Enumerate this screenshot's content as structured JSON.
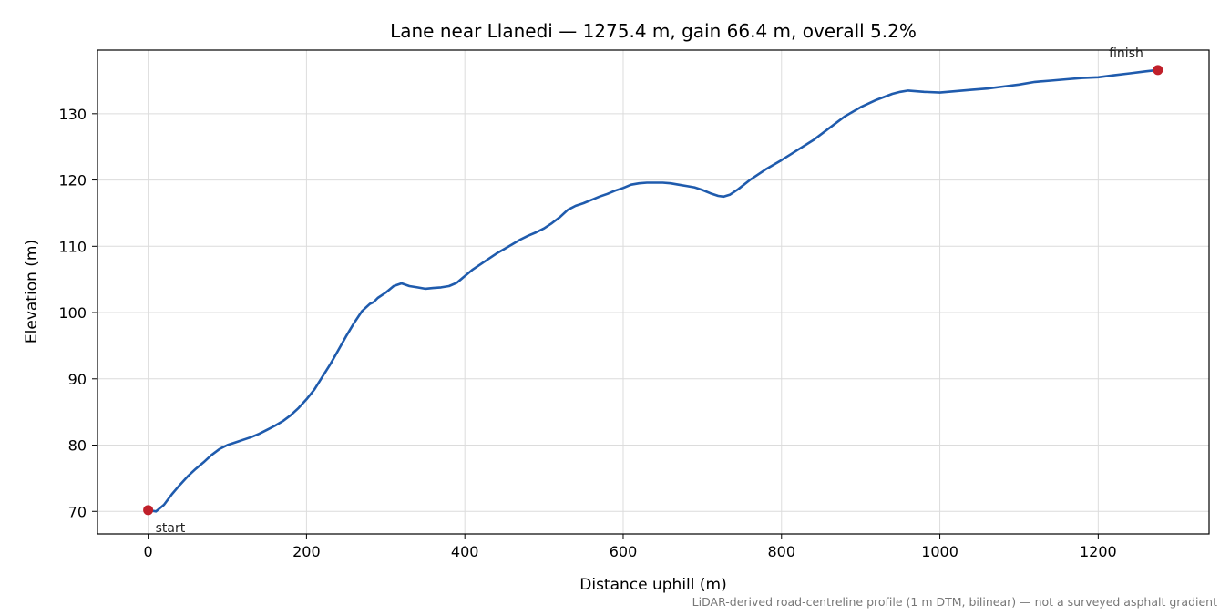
{
  "chart_data": {
    "type": "line",
    "title": "Lane near Llanedi — 1275.4 m, gain 66.4 m, overall 5.2%",
    "xlabel": "Distance uphill (m)",
    "ylabel": "Elevation (m)",
    "xlim": [
      -64,
      1340
    ],
    "ylim": [
      66.6,
      139.6
    ],
    "xticks": [
      0,
      200,
      400,
      600,
      800,
      1000,
      1200
    ],
    "yticks": [
      70,
      80,
      90,
      100,
      110,
      120,
      130
    ],
    "grid": true,
    "line_color": "#1f5bad",
    "marker_color": "#c0202a",
    "series": [
      {
        "x": [
          0,
          10,
          20,
          30,
          40,
          50,
          60,
          70,
          80,
          90,
          100,
          110,
          120,
          130,
          140,
          150,
          160,
          170,
          180,
          190,
          200,
          210,
          220,
          230,
          240,
          250,
          260,
          270,
          280,
          285,
          290,
          300,
          310,
          320,
          330,
          340,
          350,
          360,
          370,
          380,
          390,
          400,
          410,
          420,
          430,
          440,
          450,
          460,
          470,
          480,
          490,
          500,
          510,
          520,
          530,
          540,
          550,
          560,
          570,
          580,
          590,
          600,
          610,
          620,
          630,
          640,
          650,
          660,
          670,
          680,
          690,
          700,
          710,
          720,
          727,
          735,
          745,
          760,
          780,
          800,
          820,
          840,
          860,
          880,
          900,
          920,
          940,
          950,
          960,
          980,
          1000,
          1020,
          1040,
          1060,
          1080,
          1100,
          1120,
          1140,
          1160,
          1180,
          1200,
          1220,
          1240,
          1260,
          1275.4
        ],
        "y": [
          70.2,
          70.0,
          71.0,
          72.6,
          74.0,
          75.3,
          76.4,
          77.4,
          78.5,
          79.4,
          80.0,
          80.4,
          80.8,
          81.2,
          81.7,
          82.3,
          82.9,
          83.6,
          84.5,
          85.6,
          86.9,
          88.4,
          90.3,
          92.2,
          94.3,
          96.4,
          98.4,
          100.2,
          101.3,
          101.6,
          102.2,
          103.0,
          104.0,
          104.4,
          104.0,
          103.8,
          103.6,
          103.7,
          103.8,
          104.0,
          104.5,
          105.5,
          106.5,
          107.3,
          108.1,
          108.9,
          109.6,
          110.3,
          111.0,
          111.6,
          112.1,
          112.7,
          113.5,
          114.4,
          115.5,
          116.1,
          116.5,
          117.0,
          117.5,
          117.9,
          118.4,
          118.8,
          119.3,
          119.5,
          119.6,
          119.6,
          119.6,
          119.5,
          119.3,
          119.1,
          118.9,
          118.5,
          118.0,
          117.6,
          117.5,
          117.8,
          118.6,
          120.0,
          121.6,
          123.0,
          124.5,
          126.0,
          127.8,
          129.6,
          131.0,
          132.1,
          133.0,
          133.3,
          133.5,
          133.3,
          133.2,
          133.4,
          133.6,
          133.8,
          134.1,
          134.4,
          134.8,
          135.0,
          135.2,
          135.4,
          135.5,
          135.8,
          136.1,
          136.4,
          136.6
        ]
      }
    ],
    "annotations": [
      {
        "text": "start",
        "x": 0,
        "y": 70.2
      },
      {
        "text": "finish",
        "x": 1275.4,
        "y": 136.6
      }
    ],
    "caption": "LiDAR-derived road-centreline profile (1 m DTM, bilinear) — not a surveyed asphalt gradient"
  }
}
